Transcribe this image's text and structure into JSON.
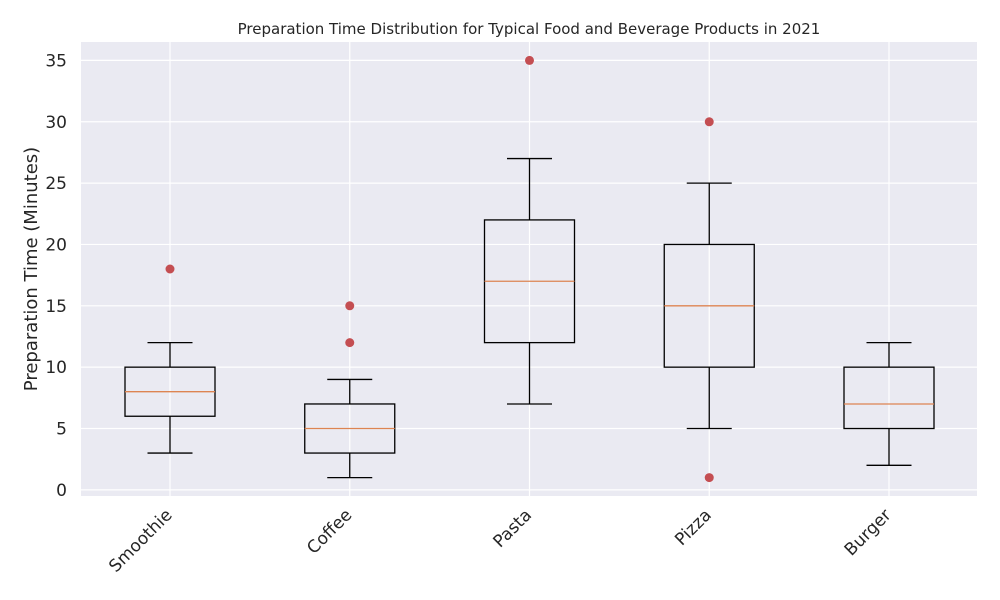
{
  "chart_data": {
    "type": "box",
    "title": "Preparation Time Distribution for Typical Food and Beverage Products in 2021",
    "xlabel": "",
    "ylabel": "Preparation Time (Minutes)",
    "ylim": [
      -0.5,
      36.5
    ],
    "yticks": [
      "0",
      "5",
      "10",
      "15",
      "20",
      "25",
      "30",
      "35"
    ],
    "grid": true,
    "categories": [
      "Smoothie",
      "Coffee",
      "Pasta",
      "Pizza",
      "Burger"
    ],
    "boxes": [
      {
        "min": 3,
        "q1": 6,
        "median": 8,
        "q3": 10,
        "max": 12,
        "outliers": [
          18
        ]
      },
      {
        "min": 1,
        "q1": 3,
        "median": 5,
        "q3": 7,
        "max": 9,
        "outliers": [
          12,
          15
        ]
      },
      {
        "min": 7,
        "q1": 12,
        "median": 17,
        "q3": 22,
        "max": 27,
        "outliers": [
          35
        ]
      },
      {
        "min": 5,
        "q1": 10,
        "median": 15,
        "q3": 20,
        "max": 25,
        "outliers": [
          1,
          30
        ]
      },
      {
        "min": 2,
        "q1": 5,
        "median": 7,
        "q3": 10,
        "max": 12,
        "outliers": []
      }
    ],
    "colors": {
      "background": "#eaeaf2",
      "grid": "#ffffff",
      "box": "#000000",
      "median": "#dd8452",
      "outlier": "#c44e52"
    }
  }
}
